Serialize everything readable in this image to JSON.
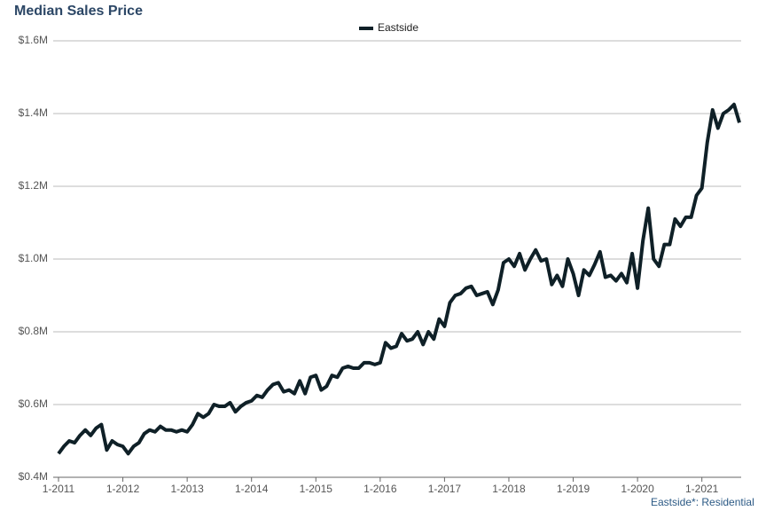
{
  "chart_data": {
    "type": "line",
    "title": "Median Sales Price",
    "footnote": "Eastside*: Residential",
    "categories": [
      "1-2011",
      null,
      null,
      null,
      null,
      null,
      null,
      null,
      null,
      null,
      null,
      null,
      "1-2012",
      null,
      null,
      null,
      null,
      null,
      null,
      null,
      null,
      null,
      null,
      null,
      "1-2013",
      null,
      null,
      null,
      null,
      null,
      null,
      null,
      null,
      null,
      null,
      null,
      "1-2014",
      null,
      null,
      null,
      null,
      null,
      null,
      null,
      null,
      null,
      null,
      null,
      "1-2015",
      null,
      null,
      null,
      null,
      null,
      null,
      null,
      null,
      null,
      null,
      null,
      "1-2016",
      null,
      null,
      null,
      null,
      null,
      null,
      null,
      null,
      null,
      null,
      null,
      "1-2017",
      null,
      null,
      null,
      null,
      null,
      null,
      null,
      null,
      null,
      null,
      null,
      "1-2018",
      null,
      null,
      null,
      null,
      null,
      null,
      null,
      null,
      null,
      null,
      null,
      "1-2019",
      null,
      null,
      null,
      null,
      null,
      null,
      null,
      null,
      null,
      null,
      null,
      "1-2020",
      null,
      null,
      null,
      null,
      null,
      null,
      null,
      null,
      null,
      null,
      null,
      "1-2021",
      null,
      null,
      null,
      null,
      null,
      null,
      null
    ],
    "series": [
      {
        "name": "Eastside",
        "color": "#0f2027",
        "values": [
          0.465,
          0.485,
          0.5,
          0.495,
          0.515,
          0.53,
          0.515,
          0.535,
          0.545,
          0.475,
          0.5,
          0.49,
          0.485,
          0.465,
          0.485,
          0.495,
          0.52,
          0.53,
          0.525,
          0.54,
          0.53,
          0.53,
          0.525,
          0.53,
          0.525,
          0.545,
          0.575,
          0.565,
          0.575,
          0.6,
          0.595,
          0.595,
          0.605,
          0.58,
          0.595,
          0.605,
          0.61,
          0.625,
          0.62,
          0.64,
          0.655,
          0.66,
          0.635,
          0.64,
          0.63,
          0.665,
          0.63,
          0.675,
          0.68,
          0.64,
          0.65,
          0.68,
          0.675,
          0.7,
          0.705,
          0.7,
          0.7,
          0.715,
          0.715,
          0.71,
          0.715,
          0.77,
          0.755,
          0.76,
          0.795,
          0.775,
          0.78,
          0.8,
          0.765,
          0.8,
          0.78,
          0.835,
          0.815,
          0.88,
          0.9,
          0.905,
          0.92,
          0.925,
          0.9,
          0.905,
          0.91,
          0.875,
          0.915,
          0.99,
          1.0,
          0.98,
          1.015,
          0.97,
          1.0,
          1.025,
          0.995,
          1.0,
          0.93,
          0.955,
          0.925,
          1.0,
          0.96,
          0.9,
          0.97,
          0.955,
          0.985,
          1.02,
          0.95,
          0.955,
          0.94,
          0.96,
          0.935,
          1.015,
          0.92,
          1.05,
          1.14,
          1.0,
          0.98,
          1.04,
          1.04,
          1.11,
          1.09,
          1.115,
          1.115,
          1.175,
          1.195,
          1.32,
          1.41,
          1.36,
          1.4,
          1.41,
          1.425,
          1.375
        ]
      }
    ],
    "ylim": [
      0.4,
      1.6
    ],
    "yticks": [
      {
        "value": 0.4,
        "label": "$0.4M"
      },
      {
        "value": 0.6,
        "label": "$0.6M"
      },
      {
        "value": 0.8,
        "label": "$0.8M"
      },
      {
        "value": 1.0,
        "label": "$1.0M"
      },
      {
        "value": 1.2,
        "label": "$1.2M"
      },
      {
        "value": 1.4,
        "label": "$1.4M"
      },
      {
        "value": 1.6,
        "label": "$1.6M"
      }
    ],
    "grid": true
  }
}
